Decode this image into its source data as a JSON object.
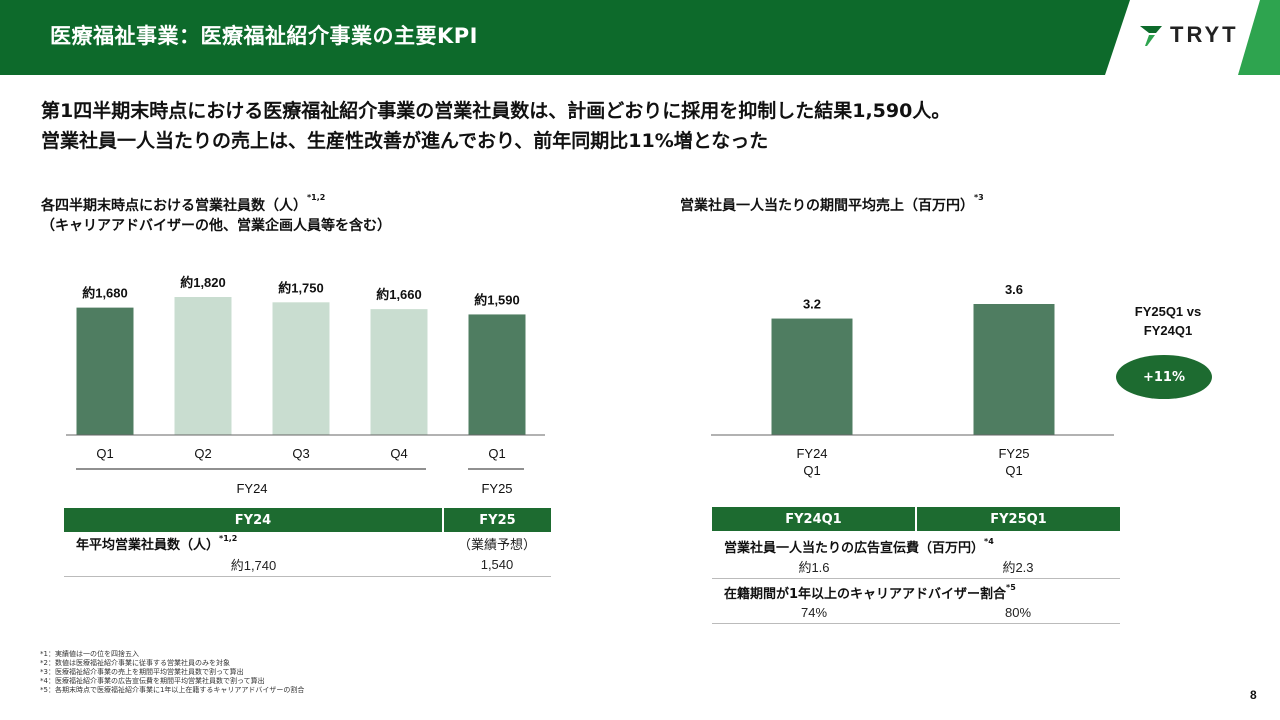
{
  "header": {
    "title": "医療福祉事業：医療福祉紹介事業の主要KPI",
    "logo_text": "TRYT",
    "colors": {
      "dark_green": "#0d6a2b",
      "light_green": "#2ea44f"
    }
  },
  "summary": {
    "line1": "第1四半期末時点における医療福祉紹介事業の営業社員数は、計画どおりに採用を抑制した結果1,590人。",
    "line2": "営業社員一人当たりの売上は、生産性改善が進んでおり、前年同期比11%増となった"
  },
  "left": {
    "title_line1": "各四半期末時点における営業社員数（人）",
    "title_sup": "*1,2",
    "title_line2": "（キャリアアドバイザーの他、営業企画人員等を含む）",
    "group_labels": [
      "FY24",
      "FY25"
    ],
    "table": {
      "headers": [
        "FY24",
        "FY25"
      ],
      "row_label": "年平均営業社員数（人）",
      "row_sup": "*1,2",
      "forecast_note": "（業績予想）",
      "values": [
        "約1,740",
        "1,540"
      ]
    }
  },
  "right": {
    "title": "営業社員一人当たりの期間平均売上（百万円）",
    "title_sup": "*3",
    "compare_line1": "FY25Q1 vs",
    "compare_line2": "FY24Q1",
    "badge": "+11%",
    "table": {
      "headers": [
        "FY24Q1",
        "FY25Q1"
      ],
      "row1_label": "営業社員一人当たりの広告宣伝費（百万円）",
      "row1_sup": "*4",
      "row1_values": [
        "約1.6",
        "約2.3"
      ],
      "row2_label": "在籍期間が1年以上のキャリアアドバイザー割合",
      "row2_sup": "*5",
      "row2_values": [
        "74%",
        "80%"
      ]
    }
  },
  "chart_data": [
    {
      "type": "bar",
      "categories": [
        "Q1",
        "Q2",
        "Q3",
        "Q4",
        "Q1"
      ],
      "groups": [
        "FY24",
        "FY24",
        "FY24",
        "FY24",
        "FY25"
      ],
      "values": [
        1680,
        1820,
        1750,
        1660,
        1590
      ],
      "data_labels": [
        "約1,680",
        "約1,820",
        "約1,750",
        "約1,660",
        "約1,590"
      ],
      "colors": [
        "#4f7d61",
        "#c9ddd0",
        "#c9ddd0",
        "#c9ddd0",
        "#4f7d61"
      ],
      "ylim": [
        0,
        1820
      ]
    },
    {
      "type": "bar",
      "categories": [
        "FY24\nQ1",
        "FY25\nQ1"
      ],
      "values": [
        3.2,
        3.6
      ],
      "data_labels": [
        "3.2",
        "3.6"
      ],
      "colors": [
        "#4f7d61",
        "#4f7d61"
      ],
      "ylim": [
        0,
        3.6
      ]
    }
  ],
  "footnotes": [
    "*1：実績値は一の位を四捨五入",
    "*2：数値は医療福祉紹介事業に従事する営業社員のみを対象",
    "*3：医療福祉紹介事業の売上を期間平均営業社員数で割って算出",
    "*4：医療福祉紹介事業の広告宣伝費を期間平均営業社員数で割って算出",
    "*5：各期末時点で医療福祉紹介事業に1年以上在籍するキャリアアドバイザーの割合"
  ],
  "page_number": "8"
}
